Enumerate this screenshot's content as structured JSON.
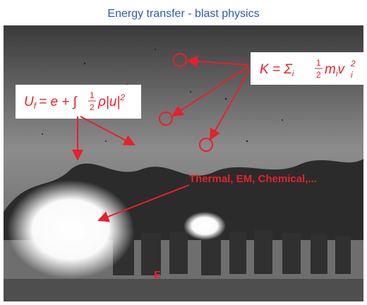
{
  "header": {
    "title": "Energy transfer - blast physics"
  },
  "annotations": {
    "kinetic_energy": {
      "lhs": "K = Σ",
      "sum_index": "i",
      "numerator": "1",
      "denominator": "2",
      "mass": "m",
      "mass_index": "i",
      "velocity": "v",
      "velocity_power": "2",
      "velocity_index": "i"
    },
    "fluid_energy": {
      "lhs": "U",
      "lhs_index": "f",
      "middle": "= e + ∫",
      "numerator": "1",
      "denominator": "2",
      "density": "ρ|u|",
      "power": "2"
    },
    "other_forms": "Thermal, EM, Chemical,...",
    "explosive": "E"
  }
}
